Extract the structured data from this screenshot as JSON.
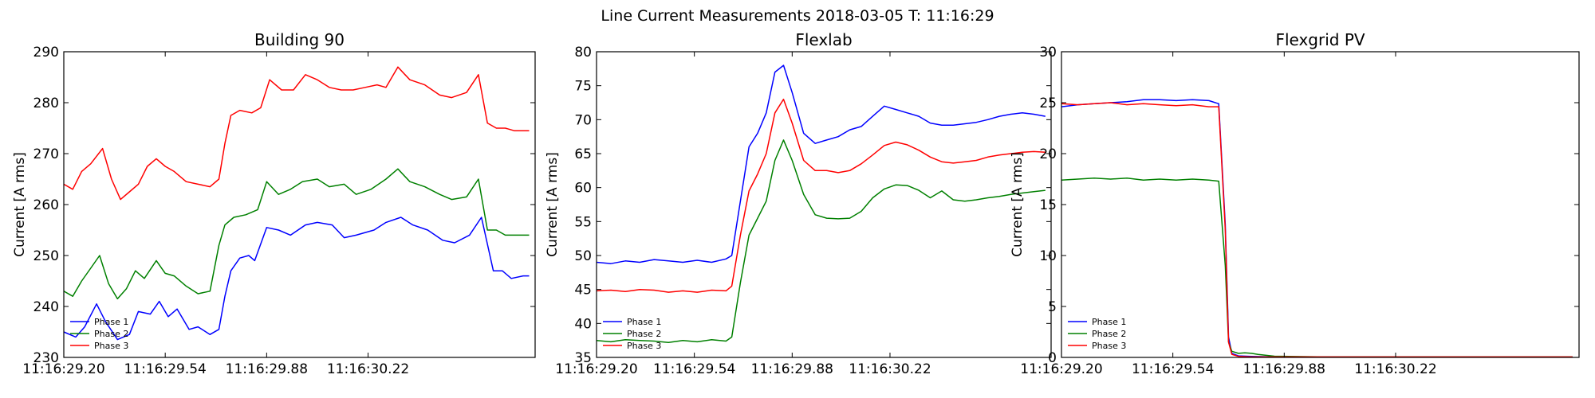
{
  "figure": {
    "title": "Line Current Measurements 2018-03-05 T: 11:16:29"
  },
  "colors": {
    "Phase 1": "#0000ff",
    "Phase 2": "#008000",
    "Phase 3": "#ff0000"
  },
  "chart_data": [
    {
      "type": "line",
      "title": "Building 90",
      "xlabel": "",
      "ylabel": "Current [A rms]",
      "xlim": [
        29.2,
        30.78
      ],
      "ylim": [
        230,
        290
      ],
      "xticks": [
        29.2,
        29.54,
        29.88,
        30.22
      ],
      "xtick_labels": [
        "11:16:29.20",
        "11:16:29.54",
        "11:16:29.88",
        "11:16:30.22"
      ],
      "yticks": [
        230,
        240,
        250,
        260,
        270,
        280,
        290
      ],
      "legend": "lower-left",
      "series": [
        {
          "name": "Phase 1",
          "color": "#0000ff",
          "x": [
            29.2,
            29.24,
            29.27,
            29.31,
            29.34,
            29.38,
            29.42,
            29.45,
            29.49,
            29.52,
            29.55,
            29.58,
            29.62,
            29.65,
            29.69,
            29.72,
            29.74,
            29.76,
            29.79,
            29.82,
            29.84,
            29.88,
            29.92,
            29.96,
            30.01,
            30.05,
            30.1,
            30.14,
            30.18,
            30.24,
            30.28,
            30.33,
            30.37,
            30.42,
            30.47,
            30.51,
            30.56,
            30.6,
            30.64,
            30.67,
            30.7,
            30.74,
            30.76
          ],
          "y": [
            235,
            234,
            236,
            240.5,
            237,
            233.5,
            234.5,
            239,
            238.5,
            241,
            238,
            239.5,
            235.5,
            236,
            234.5,
            235.5,
            242,
            247,
            249.5,
            250,
            249,
            255.5,
            255,
            254,
            256,
            256.5,
            256,
            253.5,
            254,
            255,
            256.5,
            257.5,
            256,
            255,
            253,
            252.5,
            254,
            257.5,
            247,
            247,
            245.5,
            246,
            246
          ]
        },
        {
          "name": "Phase 2",
          "color": "#008000",
          "x": [
            29.2,
            29.23,
            29.26,
            29.29,
            29.32,
            29.35,
            29.38,
            29.41,
            29.44,
            29.47,
            29.51,
            29.54,
            29.57,
            29.61,
            29.65,
            29.69,
            29.72,
            29.74,
            29.77,
            29.81,
            29.85,
            29.88,
            29.92,
            29.96,
            30.0,
            30.05,
            30.09,
            30.14,
            30.18,
            30.23,
            30.28,
            30.32,
            30.36,
            30.41,
            30.46,
            30.5,
            30.55,
            30.59,
            30.62,
            30.65,
            30.68,
            30.71,
            30.74,
            30.76
          ],
          "y": [
            243,
            242,
            245,
            247.5,
            250,
            244.5,
            241.5,
            243.5,
            247,
            245.5,
            249,
            246.5,
            246,
            244,
            242.5,
            243,
            252,
            256,
            257.5,
            258,
            259,
            264.5,
            262,
            263,
            264.5,
            265,
            263.5,
            264,
            262,
            263,
            265,
            267,
            264.5,
            263.5,
            262,
            261,
            261.5,
            265,
            255,
            255,
            254,
            254,
            254,
            254
          ]
        },
        {
          "name": "Phase 3",
          "color": "#ff0000",
          "x": [
            29.2,
            29.23,
            29.26,
            29.29,
            29.33,
            29.36,
            29.39,
            29.42,
            29.45,
            29.48,
            29.51,
            29.54,
            29.57,
            29.61,
            29.65,
            29.69,
            29.72,
            29.74,
            29.76,
            29.79,
            29.83,
            29.86,
            29.89,
            29.93,
            29.97,
            30.01,
            30.05,
            30.09,
            30.13,
            30.17,
            30.21,
            30.25,
            30.28,
            30.32,
            30.36,
            30.41,
            30.46,
            30.5,
            30.55,
            30.59,
            30.62,
            30.65,
            30.68,
            30.71,
            30.74,
            30.76
          ],
          "y": [
            264,
            263,
            266.5,
            268,
            271,
            265,
            261,
            262.5,
            264,
            267.5,
            269,
            267.5,
            266.5,
            264.5,
            264,
            263.5,
            265,
            272,
            277.5,
            278.5,
            278,
            279,
            284.5,
            282.5,
            282.5,
            285.5,
            284.5,
            283,
            282.5,
            282.5,
            283,
            283.5,
            283,
            287,
            284.5,
            283.5,
            281.5,
            281,
            282,
            285.5,
            276,
            275,
            275,
            274.5,
            274.5,
            274.5
          ]
        }
      ]
    },
    {
      "type": "line",
      "title": "Flexlab",
      "xlabel": "",
      "ylabel": "Current [A rms]",
      "xlim": [
        29.2,
        30.78
      ],
      "ylim": [
        35,
        80
      ],
      "xticks": [
        29.2,
        29.54,
        29.88,
        30.22
      ],
      "xtick_labels": [
        "11:16:29.20",
        "11:16:29.54",
        "11:16:29.88",
        "11:16:30.22"
      ],
      "yticks": [
        35,
        40,
        45,
        50,
        55,
        60,
        65,
        70,
        75,
        80
      ],
      "legend": "lower-left",
      "series": [
        {
          "name": "Phase 1",
          "color": "#0000ff",
          "x": [
            29.2,
            29.25,
            29.3,
            29.35,
            29.4,
            29.45,
            29.5,
            29.55,
            29.6,
            29.65,
            29.67,
            29.7,
            29.73,
            29.76,
            29.79,
            29.82,
            29.85,
            29.88,
            29.92,
            29.96,
            30.0,
            30.04,
            30.08,
            30.12,
            30.16,
            30.2,
            30.24,
            30.28,
            30.32,
            30.36,
            30.4,
            30.44,
            30.48,
            30.52,
            30.56,
            30.6,
            30.64,
            30.68,
            30.72,
            30.76
          ],
          "y": [
            49,
            48.8,
            49.2,
            49,
            49.4,
            49.2,
            49.0,
            49.3,
            49.0,
            49.5,
            50,
            58,
            66,
            68,
            71,
            77,
            78,
            74,
            68,
            66.5,
            67.0,
            67.5,
            68.5,
            69,
            70.5,
            72,
            71.5,
            71,
            70.5,
            69.5,
            69.2,
            69.2,
            69.4,
            69.6,
            70,
            70.5,
            70.8,
            71,
            70.8,
            70.5
          ]
        },
        {
          "name": "Phase 2",
          "color": "#008000",
          "x": [
            29.2,
            29.25,
            29.3,
            29.35,
            29.4,
            29.45,
            29.5,
            29.55,
            29.6,
            29.65,
            29.67,
            29.7,
            29.73,
            29.76,
            29.79,
            29.82,
            29.85,
            29.88,
            29.92,
            29.96,
            30.0,
            30.04,
            30.08,
            30.12,
            30.16,
            30.2,
            30.24,
            30.28,
            30.32,
            30.36,
            30.4,
            30.44,
            30.48,
            30.52,
            30.56,
            30.6,
            30.64,
            30.68,
            30.72,
            30.76
          ],
          "y": [
            37.5,
            37.3,
            37.6,
            37.5,
            37.4,
            37.2,
            37.5,
            37.3,
            37.6,
            37.4,
            38,
            46,
            53,
            55.5,
            58,
            64,
            67,
            64,
            59,
            56,
            55.5,
            55.4,
            55.5,
            56.5,
            58.5,
            59.8,
            60.4,
            60.3,
            59.6,
            58.5,
            59.5,
            58.2,
            58.0,
            58.2,
            58.5,
            58.7,
            59.0,
            59.2,
            59.4,
            59.6
          ]
        },
        {
          "name": "Phase 3",
          "color": "#ff0000",
          "x": [
            29.2,
            29.25,
            29.3,
            29.35,
            29.4,
            29.45,
            29.5,
            29.55,
            29.6,
            29.65,
            29.67,
            29.7,
            29.73,
            29.76,
            29.79,
            29.82,
            29.85,
            29.88,
            29.92,
            29.96,
            30.0,
            30.04,
            30.08,
            30.12,
            30.16,
            30.2,
            30.24,
            30.28,
            30.32,
            30.36,
            30.4,
            30.44,
            30.48,
            30.52,
            30.56,
            30.6,
            30.64,
            30.68,
            30.72,
            30.76
          ],
          "y": [
            44.8,
            44.9,
            44.7,
            45,
            44.9,
            44.6,
            44.8,
            44.6,
            44.9,
            44.8,
            45.5,
            53,
            59.5,
            62,
            65,
            71,
            73,
            69.5,
            64,
            62.5,
            62.5,
            62.2,
            62.5,
            63.5,
            64.8,
            66.2,
            66.7,
            66.3,
            65.5,
            64.5,
            63.8,
            63.6,
            63.8,
            64.0,
            64.5,
            64.8,
            65.0,
            65.2,
            65.3,
            65.2
          ]
        }
      ]
    },
    {
      "type": "line",
      "title": "Flexgrid PV",
      "xlabel": "",
      "ylabel": "Current [A rms]",
      "xlim": [
        29.2,
        30.78
      ],
      "ylim": [
        0,
        30
      ],
      "xticks": [
        29.2,
        29.54,
        29.88,
        30.22
      ],
      "xtick_labels": [
        "11:16:29.20",
        "11:16:29.54",
        "11:16:29.88",
        "11:16:30.22"
      ],
      "yticks": [
        0,
        5,
        10,
        15,
        20,
        25,
        30
      ],
      "legend": "lower-left",
      "series": [
        {
          "name": "Phase 1",
          "color": "#0000ff",
          "x": [
            29.2,
            29.25,
            29.3,
            29.35,
            29.4,
            29.45,
            29.5,
            29.55,
            29.6,
            29.65,
            29.68,
            29.7,
            29.71,
            29.72,
            29.74,
            29.78,
            29.85,
            30.0,
            30.2,
            30.4,
            30.6,
            30.76
          ],
          "y": [
            24.6,
            24.8,
            24.9,
            25.0,
            25.1,
            25.3,
            25.3,
            25.2,
            25.3,
            25.2,
            24.9,
            13,
            2,
            0.4,
            0.15,
            0.1,
            0.05,
            0.05,
            0.05,
            0.05,
            0.05,
            0.05
          ]
        },
        {
          "name": "Phase 2",
          "color": "#008000",
          "x": [
            29.2,
            29.25,
            29.3,
            29.35,
            29.4,
            29.45,
            29.5,
            29.55,
            29.6,
            29.65,
            29.68,
            29.7,
            29.71,
            29.72,
            29.74,
            29.76,
            29.78,
            29.8,
            29.85,
            30.0,
            30.2,
            30.4,
            30.6,
            30.76
          ],
          "y": [
            17.4,
            17.5,
            17.6,
            17.5,
            17.6,
            17.4,
            17.5,
            17.4,
            17.5,
            17.4,
            17.3,
            9,
            1.5,
            0.6,
            0.4,
            0.45,
            0.4,
            0.3,
            0.12,
            0.05,
            0.05,
            0.05,
            0.05,
            0.05
          ]
        },
        {
          "name": "Phase 3",
          "color": "#ff0000",
          "x": [
            29.2,
            29.25,
            29.3,
            29.35,
            29.4,
            29.45,
            29.5,
            29.55,
            29.6,
            29.65,
            29.68,
            29.7,
            29.71,
            29.72,
            29.74,
            29.78,
            29.85,
            30.0,
            30.2,
            30.4,
            30.6,
            30.76
          ],
          "y": [
            24.9,
            24.8,
            24.9,
            25.0,
            24.8,
            24.9,
            24.8,
            24.7,
            24.8,
            24.6,
            24.6,
            12.5,
            1.5,
            0.3,
            0.1,
            0.05,
            0.05,
            0.05,
            0.05,
            0.05,
            0.05,
            0.05
          ]
        }
      ]
    }
  ]
}
